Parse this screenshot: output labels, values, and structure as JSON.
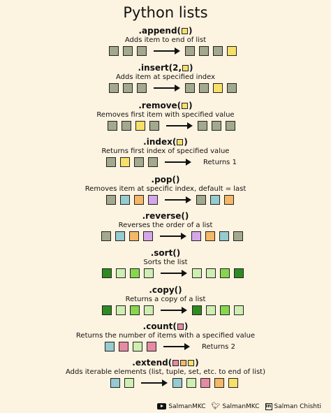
{
  "title": "Python lists",
  "colors": {
    "olive": "#a2a98e",
    "yellow": "#f7e06a",
    "teal": "#96cbd0",
    "orange": "#f5b867",
    "purple": "#d4a8e8",
    "pink": "#e58aa4",
    "dark_green": "#2f8a22",
    "mid_green": "#86d64e",
    "light_green": "#cfeeb2"
  },
  "sections": [
    {
      "method_pre": ".append(",
      "method_post": ")",
      "method_boxes": [
        "yellow"
      ],
      "desc": "Adds item to end of list",
      "before": [
        "olive",
        "olive",
        "olive"
      ],
      "after": [
        "olive",
        "olive",
        "olive",
        "yellow"
      ],
      "result": ""
    },
    {
      "method_pre": ".insert(2,",
      "method_post": ")",
      "method_boxes": [
        "yellow"
      ],
      "desc": "Adds item at specified index",
      "before": [
        "olive",
        "olive",
        "olive"
      ],
      "after": [
        "olive",
        "olive",
        "yellow",
        "olive"
      ],
      "result": ""
    },
    {
      "method_pre": ".remove(",
      "method_post": ")",
      "method_boxes": [
        "yellow"
      ],
      "desc": "Removes first item with specified value",
      "before": [
        "olive",
        "olive",
        "yellow",
        "olive"
      ],
      "after": [
        "olive",
        "olive",
        "olive"
      ],
      "result": ""
    },
    {
      "method_pre": ".index(",
      "method_post": ")",
      "method_boxes": [
        "yellow"
      ],
      "desc": "Returns first index of specified value",
      "before": [
        "olive",
        "yellow",
        "olive",
        "olive"
      ],
      "after": [],
      "result": "Returns 1"
    },
    {
      "method_pre": ".pop()",
      "method_post": "",
      "method_boxes": [],
      "desc": "Removes item at specific index, default = last",
      "before": [
        "olive",
        "teal",
        "orange",
        "purple"
      ],
      "after": [
        "olive",
        "teal",
        "orange"
      ],
      "result": ""
    },
    {
      "method_pre": ".reverse()",
      "method_post": "",
      "method_boxes": [],
      "desc": "Reverses the order of a list",
      "before": [
        "olive",
        "teal",
        "orange",
        "purple"
      ],
      "after": [
        "purple",
        "orange",
        "teal",
        "olive"
      ],
      "result": ""
    },
    {
      "method_pre": ".sort()",
      "method_post": "",
      "method_boxes": [],
      "desc": "Sorts the list",
      "before": [
        "dark_green",
        "light_green",
        "mid_green",
        "light_green"
      ],
      "after": [
        "light_green",
        "light_green",
        "mid_green",
        "dark_green"
      ],
      "result": ""
    },
    {
      "method_pre": ".copy()",
      "method_post": "",
      "method_boxes": [],
      "desc": "Returns a copy of a list",
      "before": [
        "dark_green",
        "light_green",
        "mid_green",
        "light_green"
      ],
      "after": [
        "dark_green",
        "light_green",
        "mid_green",
        "light_green"
      ],
      "result": ""
    },
    {
      "method_pre": ".count(",
      "method_post": ")",
      "method_boxes": [
        "pink"
      ],
      "desc": "Returns the number of items with a specified value",
      "before": [
        "teal",
        "pink",
        "light_green",
        "pink"
      ],
      "after": [],
      "result": "Returns 2"
    },
    {
      "method_pre": ".extend(",
      "method_post": ")",
      "method_boxes": [
        "pink",
        "orange",
        "yellow"
      ],
      "desc": "Adds iterable elements (list, tuple, set, etc. to end of list)",
      "before": [
        "teal",
        "light_green"
      ],
      "after": [
        "teal",
        "light_green",
        "pink",
        "orange",
        "yellow"
      ],
      "result": ""
    }
  ],
  "footer": {
    "youtube": "SalmanMKC",
    "twitter": "SalmanMKC",
    "linkedin": "Salman Chishti"
  }
}
